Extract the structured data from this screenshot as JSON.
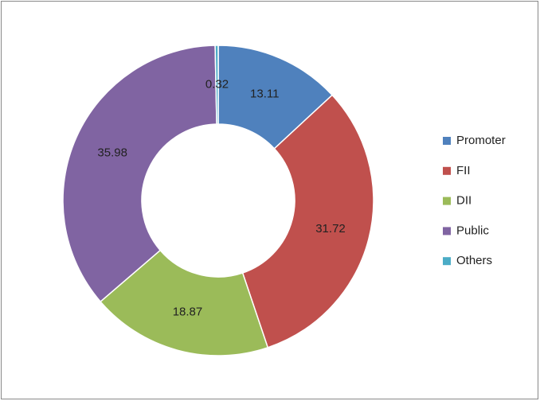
{
  "chart_data": {
    "type": "donut",
    "categories": [
      "Promoter",
      "FII",
      "DII",
      "Public",
      "Others"
    ],
    "values": [
      13.11,
      31.72,
      18.87,
      35.98,
      0.32
    ],
    "colors": [
      "#4f81bd",
      "#c0504d",
      "#9bbb59",
      "#8064a2",
      "#4bacc6"
    ],
    "legend": "right"
  }
}
